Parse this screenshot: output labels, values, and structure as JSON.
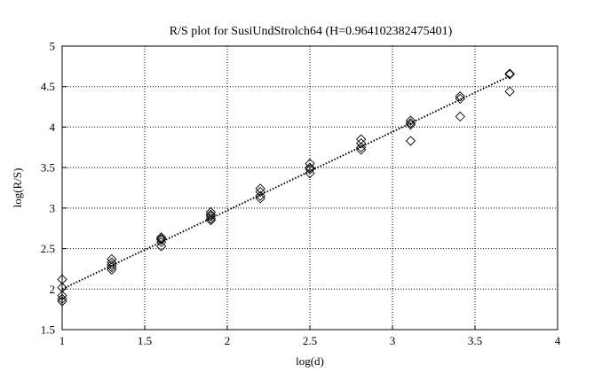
{
  "chart_data": {
    "type": "scatter",
    "title": "R/S plot for SusiUndStrolch64 (H=0.964102382475401)",
    "xlabel": "log(d)",
    "ylabel": "log(R/S)",
    "xlim": [
      1,
      4
    ],
    "ylim": [
      1.5,
      5
    ],
    "grid": true,
    "x_ticks": [
      "1",
      "1.5",
      "2",
      "2.5",
      "3",
      "3.5",
      "4"
    ],
    "y_ticks": [
      "1.5",
      "2",
      "2.5",
      "3",
      "3.5",
      "4",
      "4.5",
      "5"
    ],
    "points": [
      {
        "x": 1.0,
        "y": 2.12
      },
      {
        "x": 1.0,
        "y": 2.02
      },
      {
        "x": 1.0,
        "y": 1.92
      },
      {
        "x": 1.0,
        "y": 1.88
      },
      {
        "x": 1.0,
        "y": 1.85
      },
      {
        "x": 1.3,
        "y": 2.37
      },
      {
        "x": 1.3,
        "y": 2.33
      },
      {
        "x": 1.3,
        "y": 2.3
      },
      {
        "x": 1.3,
        "y": 2.27
      },
      {
        "x": 1.3,
        "y": 2.24
      },
      {
        "x": 1.6,
        "y": 2.64
      },
      {
        "x": 1.6,
        "y": 2.62
      },
      {
        "x": 1.6,
        "y": 2.61
      },
      {
        "x": 1.6,
        "y": 2.58
      },
      {
        "x": 1.6,
        "y": 2.53
      },
      {
        "x": 1.9,
        "y": 2.95
      },
      {
        "x": 1.9,
        "y": 2.92
      },
      {
        "x": 1.9,
        "y": 2.9
      },
      {
        "x": 1.9,
        "y": 2.87
      },
      {
        "x": 1.9,
        "y": 2.85
      },
      {
        "x": 2.2,
        "y": 3.24
      },
      {
        "x": 2.2,
        "y": 3.2
      },
      {
        "x": 2.2,
        "y": 3.15
      },
      {
        "x": 2.2,
        "y": 3.12
      },
      {
        "x": 2.5,
        "y": 3.55
      },
      {
        "x": 2.5,
        "y": 3.5
      },
      {
        "x": 2.5,
        "y": 3.48
      },
      {
        "x": 2.5,
        "y": 3.43
      },
      {
        "x": 2.81,
        "y": 3.85
      },
      {
        "x": 2.81,
        "y": 3.8
      },
      {
        "x": 2.81,
        "y": 3.75
      },
      {
        "x": 2.81,
        "y": 3.72
      },
      {
        "x": 3.11,
        "y": 4.08
      },
      {
        "x": 3.11,
        "y": 4.05
      },
      {
        "x": 3.11,
        "y": 4.03
      },
      {
        "x": 3.11,
        "y": 3.83
      },
      {
        "x": 3.41,
        "y": 4.38
      },
      {
        "x": 3.41,
        "y": 4.35
      },
      {
        "x": 3.41,
        "y": 4.13
      },
      {
        "x": 3.71,
        "y": 4.66
      },
      {
        "x": 3.71,
        "y": 4.65
      },
      {
        "x": 3.71,
        "y": 4.44
      }
    ],
    "fit_line": {
      "x": [
        1,
        3.71
      ],
      "y": [
        2.0,
        4.63
      ]
    },
    "colors": {
      "marker": "#000000",
      "grid": "#000000",
      "background": "#ffffff"
    }
  }
}
